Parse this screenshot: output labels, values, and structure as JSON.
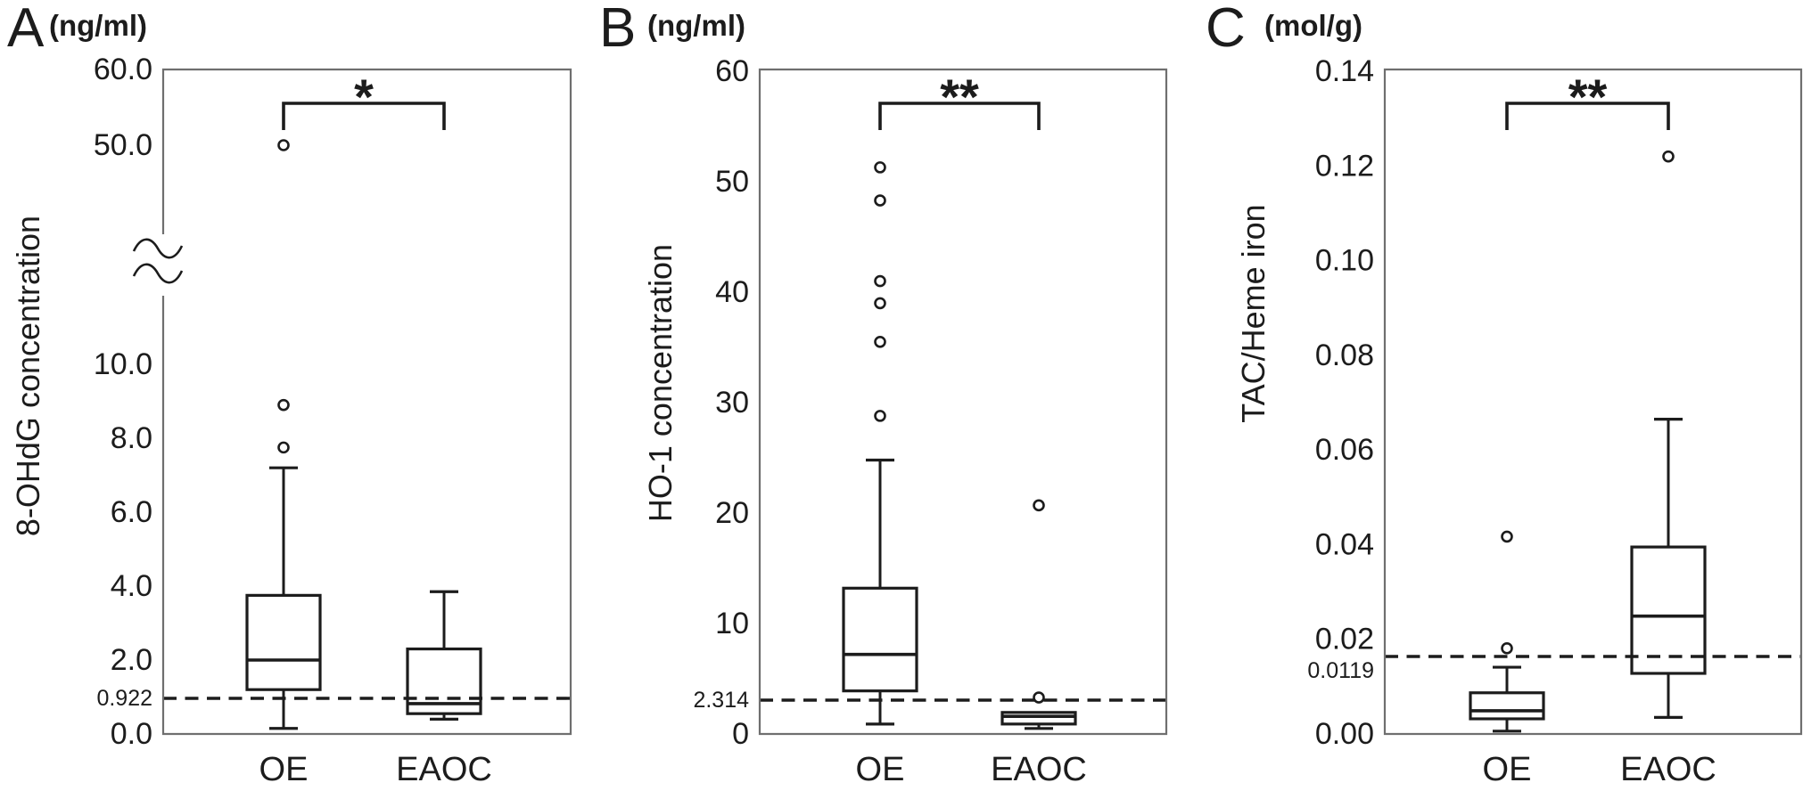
{
  "figure": {
    "background": "#ffffff",
    "line_color": "#1c1c1c",
    "frame_color": "#6f6f6f",
    "group_axis_labels": [
      "OE",
      "EAOC"
    ]
  },
  "chart_data": [
    {
      "panel": "A",
      "type": "box",
      "panel_label": "A",
      "unit_label": "(ng/ml)",
      "ylabel": "8-OHdG concentration",
      "categories": [
        "OE",
        "EAOC"
      ],
      "series": [
        {
          "name": "OE",
          "whisker_low": 0.15,
          "q1": 1.2,
          "median": 2.0,
          "q3": 3.75,
          "whisker_high": 7.2,
          "outliers": [
            7.75,
            8.9,
            50.0
          ]
        },
        {
          "name": "EAOC",
          "whisker_low": 0.4,
          "q1": 0.55,
          "median": 0.82,
          "q3": 2.3,
          "whisker_high": 3.85,
          "outliers": []
        }
      ],
      "cutoff_line": {
        "label": "0.922",
        "value": 0.922
      },
      "significance": "*",
      "ylim": [
        0,
        60
      ],
      "axis_break_between": [
        10,
        50
      ],
      "grid": false,
      "legend": false,
      "y_ticks": [
        {
          "label": "60.0",
          "v": 60
        },
        {
          "label": "50.0",
          "v": 50
        },
        {
          "label": "10.0",
          "v": 10
        },
        {
          "label": "8.0",
          "v": 8
        },
        {
          "label": "6.0",
          "v": 6
        },
        {
          "label": "4.0",
          "v": 4
        },
        {
          "label": "2.0",
          "v": 2
        },
        {
          "label": "0.0",
          "v": 0
        }
      ]
    },
    {
      "panel": "B",
      "type": "box",
      "panel_label": "B",
      "unit_label": "(ng/ml)",
      "ylabel": "HO-1 concentration",
      "categories": [
        "OE",
        "EAOC"
      ],
      "series": [
        {
          "name": "OE",
          "whisker_low": 0.9,
          "q1": 3.9,
          "median": 7.2,
          "q3": 13.2,
          "whisker_high": 24.8,
          "outliers": [
            28.8,
            35.5,
            39.0,
            41.0,
            48.3,
            51.3
          ]
        },
        {
          "name": "EAOC",
          "whisker_low": 0.5,
          "q1": 0.9,
          "median": 1.6,
          "q3": 1.95,
          "whisker_high": 1.95,
          "outliers": [
            3.3,
            20.7
          ]
        }
      ],
      "cutoff_line": {
        "label": "2.314",
        "value": 2.314
      },
      "significance": "**",
      "ylim": [
        0,
        60
      ],
      "axis_break_between": null,
      "grid": false,
      "legend": false,
      "y_ticks": [
        {
          "label": "60",
          "v": 60
        },
        {
          "label": "50",
          "v": 50
        },
        {
          "label": "40",
          "v": 40
        },
        {
          "label": "30",
          "v": 30
        },
        {
          "label": "20",
          "v": 20
        },
        {
          "label": "10",
          "v": 10
        },
        {
          "label": "0",
          "v": 0
        }
      ]
    },
    {
      "panel": "C",
      "type": "box",
      "panel_label": "C",
      "unit_label": "(mol/g)",
      "ylabel": "TAC/Heme iron",
      "categories": [
        "OE",
        "EAOC"
      ],
      "series": [
        {
          "name": "OE",
          "whisker_low": 0.0006,
          "q1": 0.0032,
          "median": 0.0049,
          "q3": 0.0087,
          "whisker_high": 0.0141,
          "outliers": [
            0.0181,
            0.0417
          ]
        },
        {
          "name": "EAOC",
          "whisker_low": 0.0035,
          "q1": 0.0128,
          "median": 0.0249,
          "q3": 0.0395,
          "whisker_high": 0.0665,
          "outliers": [
            0.122
          ]
        }
      ],
      "cutoff_line": {
        "label": "0.0119",
        "value": 0.0119
      },
      "significance": "**",
      "ylim": [
        0,
        0.14
      ],
      "axis_break_between": null,
      "grid": false,
      "legend": false,
      "y_ticks": [
        {
          "label": "0.14",
          "v": 0.14
        },
        {
          "label": "0.12",
          "v": 0.12
        },
        {
          "label": "0.10",
          "v": 0.1
        },
        {
          "label": "0.08",
          "v": 0.08
        },
        {
          "label": "0.06",
          "v": 0.06
        },
        {
          "label": "0.04",
          "v": 0.04
        },
        {
          "label": "0.02",
          "v": 0.02
        },
        {
          "label": "0.00",
          "v": 0.0
        }
      ]
    }
  ]
}
